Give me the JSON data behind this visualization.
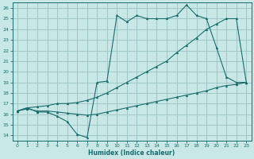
{
  "background_color": "#c8e8e8",
  "grid_color": "#a0c8c8",
  "line_color": "#1a6b6b",
  "xlabel": "Humidex (Indice chaleur)",
  "xlim": [
    -0.5,
    23.5
  ],
  "ylim": [
    13.5,
    26.5
  ],
  "xticks": [
    0,
    1,
    2,
    3,
    4,
    5,
    6,
    7,
    8,
    9,
    10,
    11,
    12,
    13,
    14,
    15,
    16,
    17,
    18,
    19,
    20,
    21,
    22,
    23
  ],
  "yticks": [
    14,
    15,
    16,
    17,
    18,
    19,
    20,
    21,
    22,
    23,
    24,
    25,
    26
  ],
  "line_jagged": [
    16.3,
    16.6,
    16.2,
    16.2,
    15.8,
    15.3,
    14.1,
    13.8,
    19.0,
    19.1,
    25.3,
    24.7,
    25.3,
    25.0,
    25.0,
    25.0,
    25.3,
    26.3,
    25.3,
    25.0,
    22.3,
    19.5,
    19.0,
    19.0
  ],
  "line_upper_trend": [
    16.3,
    16.6,
    16.7,
    16.8,
    17.0,
    17.0,
    17.1,
    17.3,
    17.6,
    18.0,
    18.5,
    19.0,
    19.5,
    20.0,
    20.5,
    21.0,
    21.8,
    22.5,
    23.2,
    24.0,
    24.5,
    25.0,
    25.0,
    19.0
  ],
  "line_lower_trend": [
    16.3,
    16.5,
    16.3,
    16.3,
    16.2,
    16.1,
    16.0,
    15.9,
    16.0,
    16.2,
    16.4,
    16.6,
    16.8,
    17.0,
    17.2,
    17.4,
    17.6,
    17.8,
    18.0,
    18.2,
    18.5,
    18.7,
    18.8,
    19.0
  ]
}
